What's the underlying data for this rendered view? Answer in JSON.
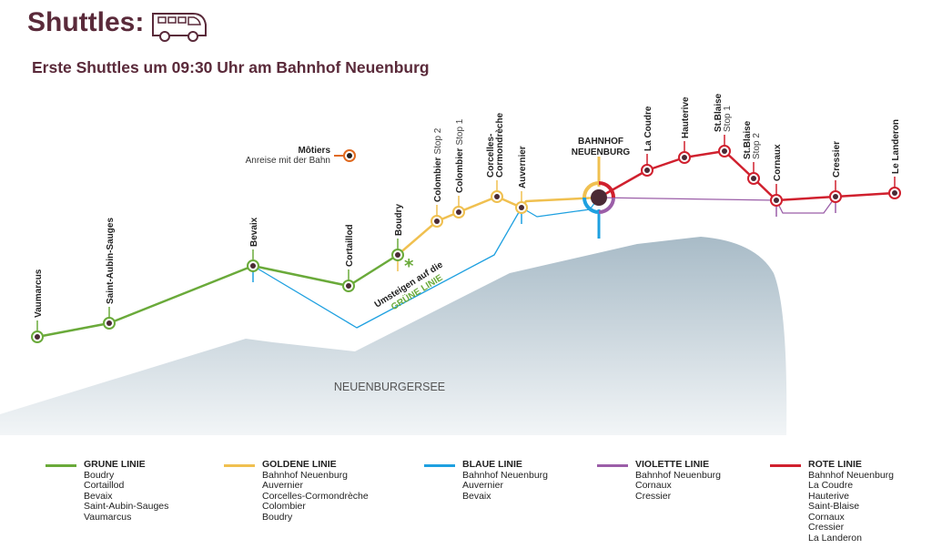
{
  "header": {
    "title": "Shuttles:",
    "subtitle": "Erste Shuttles um 09:30 Uhr am Bahnhof Neuenburg",
    "icon": "bus-icon"
  },
  "colors": {
    "brand": "#5a2a3a",
    "green": "#6aaa3a",
    "gold": "#f0c050",
    "blue": "#1ea0e0",
    "violet": "#9b5ea8",
    "red": "#d0202e",
    "station": "#4a2a35"
  },
  "map": {
    "lake_label": "NEUENBURGERSEE",
    "hub": [
      "BAHNHOF",
      "NEUENBURG"
    ],
    "motiers": {
      "name": "Môtiers",
      "note": "Anreise mit der Bahn"
    },
    "transfer": {
      "line1": "Umsteigen auf die",
      "line2": "GRÜNE LINIE",
      "mark": "*"
    },
    "stations": [
      {
        "name": "Vaumarcus",
        "sub": ""
      },
      {
        "name": "Saint-Aubin-Sauges",
        "sub": ""
      },
      {
        "name": "Bevaix",
        "sub": ""
      },
      {
        "name": "Cortaillod",
        "sub": ""
      },
      {
        "name": "Boudry",
        "sub": ""
      },
      {
        "name": "Colombier",
        "sub": "Stop 2"
      },
      {
        "name": "Colombier",
        "sub": "Stop 1"
      },
      {
        "name": "Corcelles-",
        "sub2": "Cormondrèche"
      },
      {
        "name": "Auvernier",
        "sub": ""
      },
      {
        "name": "La Coudre",
        "sub": ""
      },
      {
        "name": "Hauterive",
        "sub": ""
      },
      {
        "name": "St.Blaise",
        "sub2l": "Stop 1"
      },
      {
        "name": "St.Blaise",
        "sub2l": "Stop 2"
      },
      {
        "name": "Cornaux",
        "sub": ""
      },
      {
        "name": "Cressier",
        "sub": ""
      },
      {
        "name": "Le Landeron",
        "sub": ""
      }
    ]
  },
  "legend": [
    {
      "title": "GRUNE LINIE",
      "color": "#6aaa3a",
      "stops": [
        "Boudry",
        "Cortaillod",
        "Bevaix",
        "Saint-Aubin-Sauges",
        "Vaumarcus"
      ]
    },
    {
      "title": "GOLDENE LINIE",
      "color": "#f0c050",
      "stops": [
        "Bahnhof Neuenburg",
        "Auvernier",
        "Corcelles-Cormondrèche",
        "Colombier",
        "Boudry"
      ]
    },
    {
      "title": "BLAUE LINIE",
      "color": "#1ea0e0",
      "stops": [
        "Bahnhof Neuenburg",
        "Auvernier",
        "Bevaix"
      ]
    },
    {
      "title": "VIOLETTE LINIE",
      "color": "#9b5ea8",
      "stops": [
        "Bahnhof Neuenburg",
        "Cornaux",
        "Cressier"
      ]
    },
    {
      "title": "ROTE LINIE",
      "color": "#d0202e",
      "stops": [
        "Bahnhof Neuenburg",
        "La Coudre",
        "Hauterive",
        "Saint-Blaise",
        "Cornaux",
        "Cressier",
        "La Landeron"
      ]
    }
  ]
}
